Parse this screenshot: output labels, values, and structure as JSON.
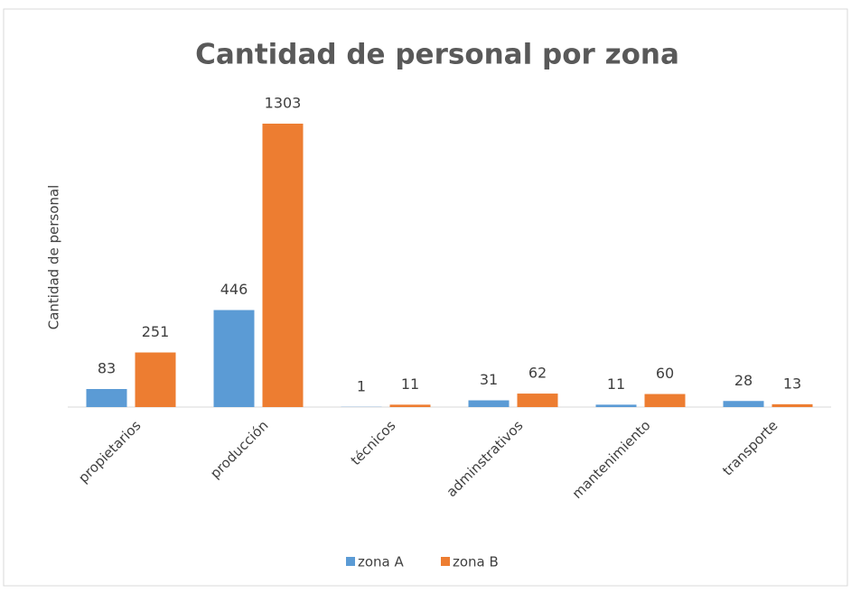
{
  "chart_data": {
    "type": "bar",
    "title": "Cantidad de personal por zona",
    "y_label": "Cantidad de personal",
    "categories": [
      "propietarios",
      "producción",
      "técnicos",
      "adminstrativos",
      "mantenimiento",
      "transporte"
    ],
    "series": [
      {
        "name": "zona A",
        "color": "#5b9bd5",
        "values": [
          83,
          446,
          1,
          31,
          11,
          28
        ]
      },
      {
        "name": "zona B",
        "color": "#ed7d31",
        "values": [
          251,
          1303,
          11,
          62,
          60,
          13
        ]
      }
    ],
    "legend": "bottom"
  }
}
